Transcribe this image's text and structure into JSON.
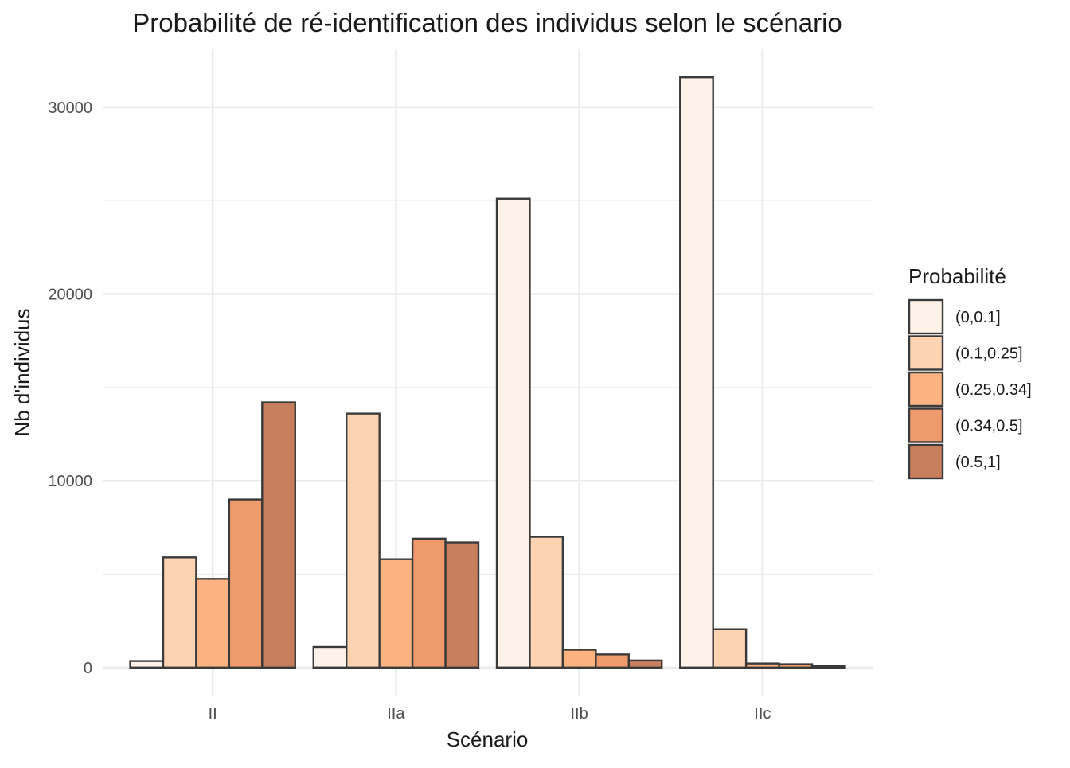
{
  "chart_data": {
    "type": "bar",
    "title": "Probabilité de ré-identification des individus selon le scénario",
    "xlabel": "Scénario",
    "ylabel": "Nb d'individus",
    "categories": [
      "II",
      "IIa",
      "IIb",
      "IIc"
    ],
    "ylim": [
      -1500,
      33100
    ],
    "yticks": [
      0,
      10000,
      20000,
      30000
    ],
    "ytick_labels": [
      "0",
      "10000",
      "20000",
      "30000"
    ],
    "grid": true,
    "legend": {
      "title": "Probabilité",
      "position": "right"
    },
    "series": [
      {
        "name": "(0,0.1]",
        "color": "#FEF1E7",
        "values": [
          350,
          1100,
          25100,
          31600
        ]
      },
      {
        "name": "(0.1,0.25]",
        "color": "#FDD3B1",
        "values": [
          5900,
          13600,
          7000,
          2050
        ]
      },
      {
        "name": "(0.25,0.34]",
        "color": "#FDB380",
        "values": [
          4750,
          5800,
          950,
          220
        ]
      },
      {
        "name": "(0.34,0.5]",
        "color": "#EE9A6B",
        "values": [
          9000,
          6900,
          700,
          180
        ]
      },
      {
        "name": "(0.5,1]",
        "color": "#C67E5D",
        "values": [
          14200,
          6700,
          380,
          80
        ]
      }
    ]
  }
}
